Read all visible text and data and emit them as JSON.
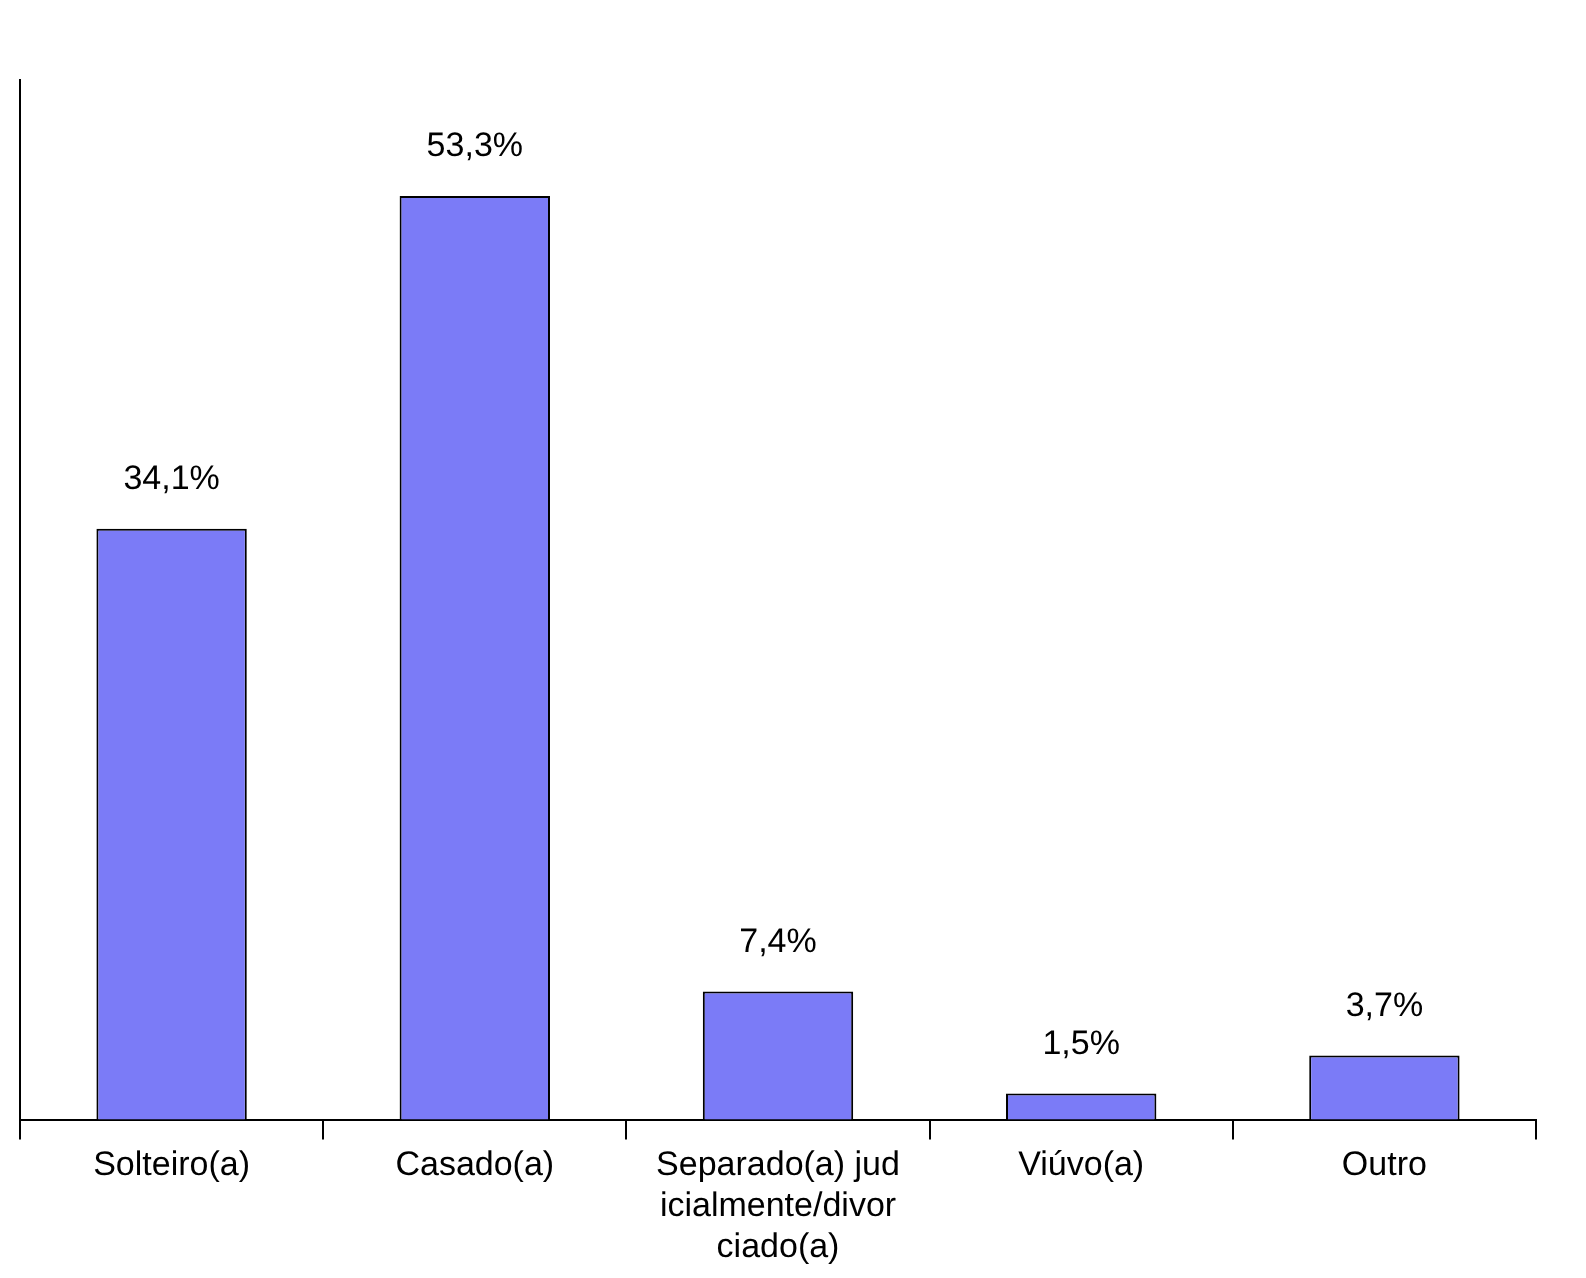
{
  "chart_data": {
    "type": "bar",
    "categories": [
      "Solteiro(a)",
      "Casado(a)",
      "Separado(a) judicialmente/divorciado(a)",
      "Viúvo(a)",
      "Outro"
    ],
    "values": [
      34.1,
      53.3,
      7.4,
      1.5,
      3.7
    ],
    "value_labels": [
      "34,1%",
      "53,3%",
      "7,4%",
      "1,5%",
      "3,7%"
    ],
    "color": "#7b7bf7",
    "grid": false,
    "legend": false,
    "tick_labels": "x"
  }
}
